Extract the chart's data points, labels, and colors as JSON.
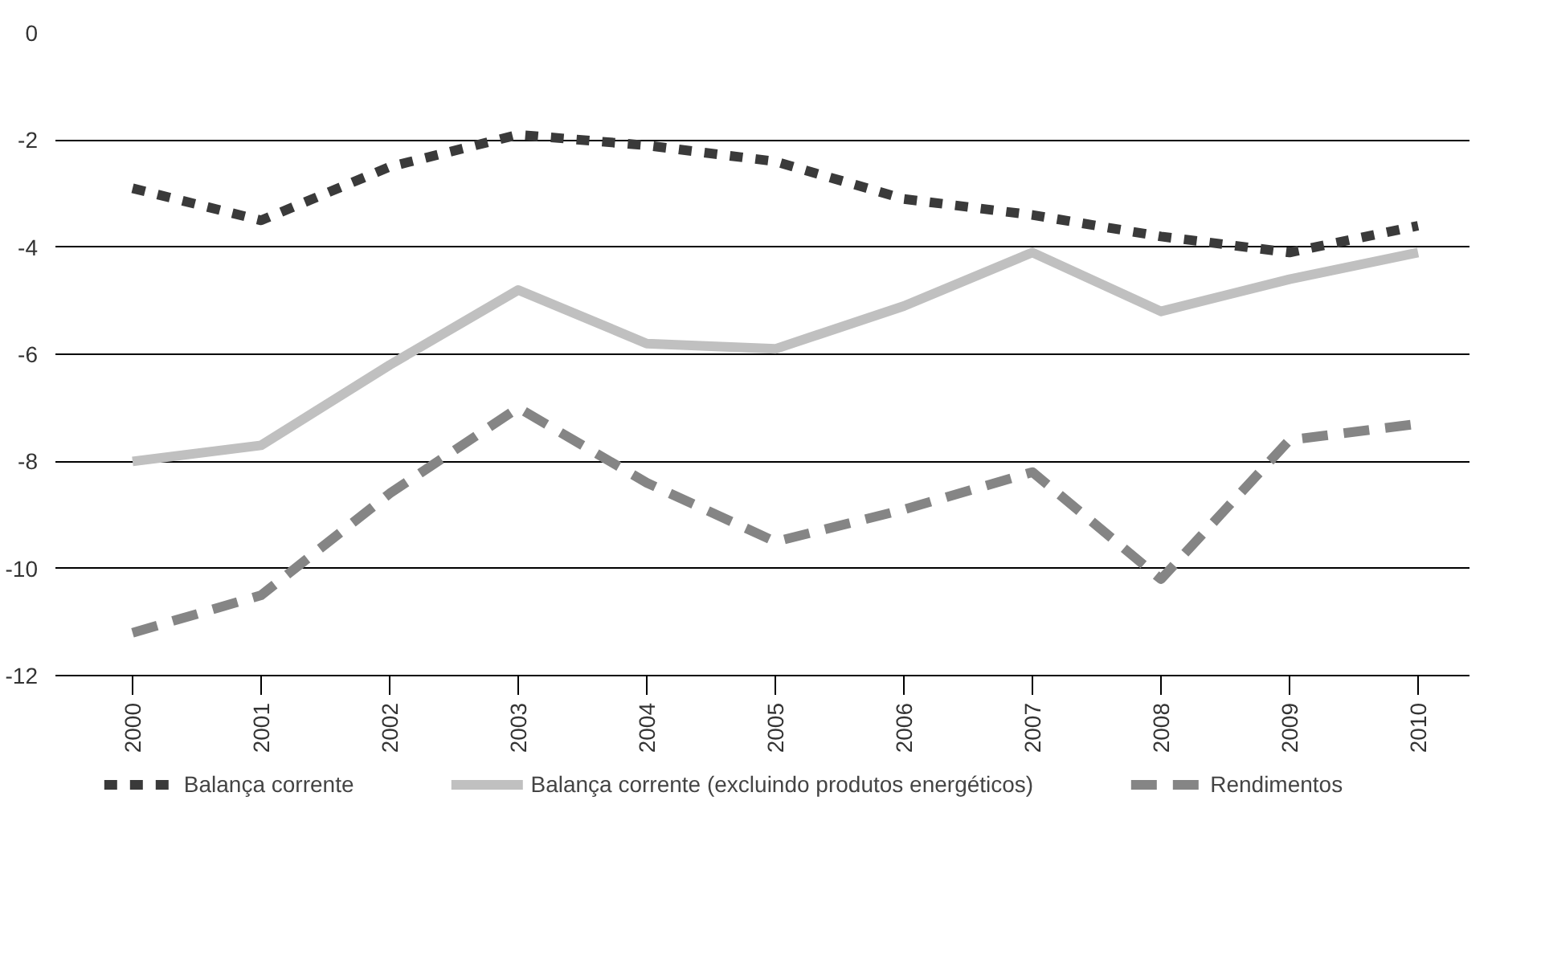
{
  "chart_data": {
    "type": "line",
    "categories": [
      "2000",
      "2001",
      "2002",
      "2003",
      "2004",
      "2005",
      "2006",
      "2007",
      "2008",
      "2009",
      "2010"
    ],
    "ylim": [
      -12,
      0
    ],
    "yticks": [
      0,
      -2,
      -4,
      -6,
      -8,
      -10,
      -12
    ],
    "grid": "y",
    "legend": "bottom",
    "series": [
      {
        "name": "Balança corrente",
        "color": "#3a3a3a",
        "line_style": "dotted",
        "values": [
          -2.9,
          -3.5,
          -2.5,
          -1.9,
          -2.1,
          -2.4,
          -3.1,
          -3.4,
          -3.8,
          -4.1,
          -3.6
        ]
      },
      {
        "name": "Balança corrente (excluindo produtos energéticos)",
        "color": "#c0c0c0",
        "line_style": "solid",
        "values": [
          -8.0,
          -7.7,
          -6.2,
          -4.8,
          -5.8,
          -5.9,
          -5.1,
          -4.1,
          -5.2,
          -4.6,
          -4.1
        ]
      },
      {
        "name": "Rendimentos",
        "color": "#858585",
        "line_style": "dashed",
        "values": [
          -11.2,
          -10.5,
          -8.6,
          -7.0,
          -8.4,
          -9.5,
          -8.9,
          -8.2,
          -10.2,
          -7.6,
          -7.3
        ]
      }
    ]
  }
}
